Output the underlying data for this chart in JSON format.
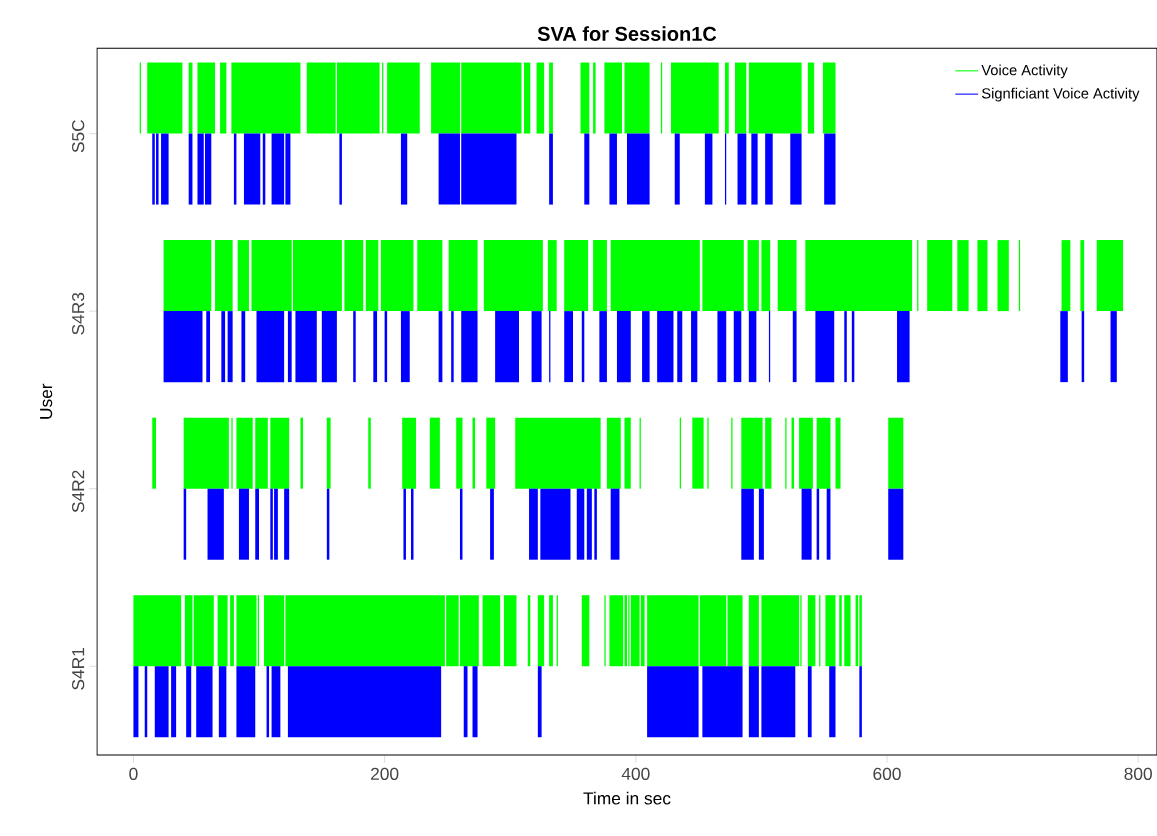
{
  "chart_data": {
    "type": "bar",
    "orientation": "horizontal",
    "title": "SVA for Session1C",
    "xlabel": "Time in sec",
    "ylabel": "User",
    "categories": [
      "S5C",
      "S4R3",
      "S4R2",
      "S4R1"
    ],
    "xlim": [
      -29,
      815
    ],
    "xticks": [
      0,
      200,
      400,
      600,
      800
    ],
    "legend": "top right",
    "series": [
      {
        "name": "Voice Activity",
        "color": "#00ff00",
        "base": [
          5,
          24,
          15,
          0
        ],
        "values": [
          1,
          38,
          3,
          38
        ]
      },
      {
        "color": "#00ff00",
        "base": [
          11,
          65,
          40,
          41
        ],
        "values": [
          28,
          14,
          36,
          6
        ]
      },
      {
        "color": "#00ff00",
        "base": [
          44,
          83,
          78,
          48
        ],
        "values": [
          3,
          9,
          1,
          16
        ]
      },
      {
        "color": "#00ff00",
        "base": [
          51,
          94,
          82,
          67
        ],
        "values": [
          14,
          32,
          13,
          8
        ]
      },
      {
        "color": "#00ff00",
        "base": [
          69,
          127,
          97,
          77
        ],
        "values": [
          5,
          39,
          10,
          3
        ]
      },
      {
        "color": "#00ff00",
        "base": [
          78,
          168,
          109,
          82
        ],
        "values": [
          55,
          15,
          15,
          16
        ]
      },
      {
        "color": "#00ff00",
        "base": [
          138,
          185,
          133,
          99
        ],
        "values": [
          23,
          10,
          2,
          1
        ]
      },
      {
        "color": "#00ff00",
        "base": [
          162,
          197,
          154,
          104
        ],
        "values": [
          34,
          26,
          3,
          16
        ]
      },
      {
        "color": "#00ff00",
        "base": [
          198,
          226,
          187,
          121
        ],
        "values": [
          1,
          20,
          2,
          127
        ]
      },
      {
        "color": "#00ff00",
        "base": [
          202,
          251,
          214,
          249
        ],
        "values": [
          26,
          23,
          11,
          10
        ]
      },
      {
        "color": "#00ff00",
        "base": [
          237,
          279,
          236,
          260
        ],
        "values": [
          23,
          47,
          8,
          15
        ]
      },
      {
        "color": "#00ff00",
        "base": [
          261,
          330,
          257,
          278
        ],
        "values": [
          48,
          7,
          5,
          14
        ]
      },
      {
        "color": "#00ff00",
        "base": [
          311,
          343,
          270,
          295
        ],
        "values": [
          5,
          19,
          2,
          10
        ]
      },
      {
        "color": "#00ff00",
        "base": [
          321,
          366,
          281,
          314
        ],
        "values": [
          6,
          11,
          7,
          2
        ]
      },
      {
        "color": "#00ff00",
        "base": [
          331,
          380,
          304,
          322
        ],
        "values": [
          3,
          71,
          68,
          5
        ]
      },
      {
        "color": "#00ff00",
        "base": [
          356,
          453,
          377,
          331
        ],
        "values": [
          7,
          33,
          11,
          3
        ]
      },
      {
        "color": "#00ff00",
        "base": [
          366,
          489,
          391,
          337
        ],
        "values": [
          2,
          9,
          5,
          1
        ]
      },
      {
        "color": "#00ff00",
        "base": [
          375,
          500,
          403,
          357
        ],
        "values": [
          14,
          7,
          1,
          6
        ]
      },
      {
        "color": "#00ff00",
        "base": [
          391,
          513,
          435,
          375
        ],
        "values": [
          20,
          15,
          1,
          1
        ]
      },
      {
        "color": "#00ff00",
        "base": [
          420,
          535,
          445,
          379
        ],
        "values": [
          1,
          85,
          9,
          11
        ]
      },
      {
        "color": "#00ff00",
        "base": [
          428,
          624,
          457,
          391
        ],
        "values": [
          38,
          1,
          1,
          2
        ]
      },
      {
        "color": "#00ff00",
        "base": [
          471,
          632,
          476,
          394
        ],
        "values": [
          3,
          20,
          1,
          1
        ]
      },
      {
        "color": "#00ff00",
        "base": [
          479,
          656,
          484,
          396
        ],
        "values": [
          9,
          9,
          17,
          7
        ]
      },
      {
        "color": "#00ff00",
        "base": [
          490,
          672,
          503,
          404
        ],
        "values": [
          42,
          8,
          5,
          3
        ]
      },
      {
        "color": "#00ff00",
        "base": [
          537,
          688,
          519,
          409
        ],
        "values": [
          5,
          9,
          1,
          41
        ]
      },
      {
        "color": "#00ff00",
        "base": [
          549,
          705,
          524,
          451
        ],
        "values": [
          10,
          1,
          2,
          21
        ]
      },
      {
        "color": "#00ff00",
        "base": [
          null,
          739,
          530,
          473
        ],
        "values": [
          null,
          7,
          11,
          12
        ]
      },
      {
        "color": "#00ff00",
        "base": [
          null,
          754,
          544,
          490
        ],
        "values": [
          null,
          3,
          11,
          8
        ]
      },
      {
        "color": "#00ff00",
        "base": [
          null,
          767,
          559,
          500
        ],
        "values": [
          null,
          21,
          4,
          30
        ]
      },
      {
        "color": "#00ff00",
        "base": [
          null,
          null,
          601,
          531
        ],
        "values": [
          null,
          null,
          12,
          1
        ]
      },
      {
        "color": "#00ff00",
        "base": [
          null,
          null,
          null,
          537
        ],
        "values": [
          null,
          null,
          null,
          6
        ]
      },
      {
        "color": "#00ff00",
        "base": [
          null,
          null,
          null,
          546
        ],
        "values": [
          null,
          null,
          null,
          1
        ]
      },
      {
        "color": "#00ff00",
        "base": [
          null,
          null,
          null,
          551
        ],
        "values": [
          null,
          null,
          null,
          8
        ]
      },
      {
        "color": "#00ff00",
        "base": [
          null,
          null,
          null,
          562
        ],
        "values": [
          null,
          null,
          null,
          2
        ]
      },
      {
        "color": "#00ff00",
        "base": [
          null,
          null,
          null,
          566
        ],
        "values": [
          null,
          null,
          null,
          5
        ]
      },
      {
        "color": "#00ff00",
        "base": [
          null,
          null,
          null,
          575
        ],
        "values": [
          null,
          null,
          null,
          2
        ]
      },
      {
        "color": "#00ff00",
        "base": [
          null,
          null,
          null,
          578
        ],
        "values": [
          null,
          null,
          null,
          2
        ]
      },
      {
        "name": "Signficiant Voice Activity",
        "color": "#0000ff",
        "base": [
          15,
          24,
          40,
          0
        ],
        "values": [
          2,
          31,
          2,
          4
        ]
      },
      {
        "color": "#0000ff",
        "base": [
          18,
          58,
          59,
          9
        ],
        "values": [
          2,
          3,
          13,
          2
        ]
      },
      {
        "color": "#0000ff",
        "base": [
          22,
          70,
          84,
          17
        ],
        "values": [
          6,
          3,
          8,
          11
        ]
      },
      {
        "color": "#0000ff",
        "base": [
          44,
          75,
          97,
          30
        ],
        "values": [
          3,
          4,
          3,
          4
        ]
      },
      {
        "color": "#0000ff",
        "base": [
          51,
          86,
          109,
          42
        ],
        "values": [
          5,
          3,
          2,
          4
        ]
      },
      {
        "color": "#0000ff",
        "base": [
          57,
          98,
          112,
          50
        ],
        "values": [
          5,
          22,
          3,
          13
        ]
      },
      {
        "color": "#0000ff",
        "base": [
          80,
          123,
          120,
          68
        ],
        "values": [
          2,
          3,
          4,
          6
        ]
      },
      {
        "color": "#0000ff",
        "base": [
          88,
          129,
          154,
          82
        ],
        "values": [
          13,
          17,
          2,
          15
        ]
      },
      {
        "color": "#0000ff",
        "base": [
          103,
          150,
          215,
          106
        ],
        "values": [
          2,
          12,
          2,
          2
        ]
      },
      {
        "color": "#0000ff",
        "base": [
          110,
          175,
          221,
          110
        ],
        "values": [
          10,
          2,
          2,
          7
        ]
      },
      {
        "color": "#0000ff",
        "base": [
          121,
          191,
          260,
          123
        ],
        "values": [
          4,
          3,
          2,
          122
        ]
      },
      {
        "color": "#0000ff",
        "base": [
          164,
          200,
          284,
          263
        ],
        "values": [
          2,
          2,
          3,
          3
        ]
      },
      {
        "color": "#0000ff",
        "base": [
          213,
          213,
          315,
          270
        ],
        "values": [
          5,
          7,
          7,
          4
        ]
      },
      {
        "color": "#0000ff",
        "base": [
          243,
          243,
          324,
          322
        ],
        "values": [
          17,
          3,
          24,
          3
        ]
      },
      {
        "color": "#0000ff",
        "base": [
          261,
          253,
          353,
          409
        ],
        "values": [
          44,
          2,
          6,
          41
        ]
      },
      {
        "color": "#0000ff",
        "base": [
          331,
          261,
          361,
          453
        ],
        "values": [
          3,
          13,
          4,
          32
        ]
      },
      {
        "color": "#0000ff",
        "base": [
          359,
          288,
          367,
          490
        ],
        "values": [
          4,
          19,
          2,
          8
        ]
      },
      {
        "color": "#0000ff",
        "base": [
          379,
          317,
          380,
          500
        ],
        "values": [
          6,
          8,
          7,
          27
        ]
      },
      {
        "color": "#0000ff",
        "base": [
          393,
          331,
          484,
          537
        ],
        "values": [
          18,
          1,
          10,
          3
        ]
      },
      {
        "color": "#0000ff",
        "base": [
          431,
          343,
          498,
          554
        ],
        "values": [
          4,
          7,
          4,
          5
        ]
      },
      {
        "color": "#0000ff",
        "base": [
          455,
          357,
          532,
          578
        ],
        "values": [
          6,
          2,
          8,
          2
        ]
      },
      {
        "color": "#0000ff",
        "base": [
          471,
          371,
          544,
          null
        ],
        "values": [
          1,
          6,
          2,
          null
        ]
      },
      {
        "color": "#0000ff",
        "base": [
          481,
          385,
          552,
          null
        ],
        "values": [
          7,
          11,
          3,
          null
        ]
      },
      {
        "color": "#0000ff",
        "base": [
          492,
          405,
          601,
          null
        ],
        "values": [
          5,
          6,
          12,
          null
        ]
      },
      {
        "color": "#0000ff",
        "base": [
          503,
          417,
          null,
          null
        ],
        "values": [
          6,
          13,
          null,
          null
        ]
      },
      {
        "color": "#0000ff",
        "base": [
          523,
          433,
          null,
          null
        ],
        "values": [
          9,
          4,
          null,
          null
        ]
      },
      {
        "color": "#0000ff",
        "base": [
          550,
          444,
          null,
          null
        ],
        "values": [
          9,
          5,
          null,
          null
        ]
      },
      {
        "color": "#0000ff",
        "base": [
          null,
          465,
          null,
          null
        ],
        "values": [
          null,
          7,
          null,
          null
        ]
      },
      {
        "color": "#0000ff",
        "base": [
          null,
          478,
          null,
          null
        ],
        "values": [
          null,
          6,
          null,
          null
        ]
      },
      {
        "color": "#0000ff",
        "base": [
          null,
          490,
          null,
          null
        ],
        "values": [
          null,
          6,
          null,
          null
        ]
      },
      {
        "color": "#0000ff",
        "base": [
          null,
          506,
          null,
          null
        ],
        "values": [
          null,
          1,
          null,
          null
        ]
      },
      {
        "color": "#0000ff",
        "base": [
          null,
          525,
          null,
          null
        ],
        "values": [
          null,
          3,
          null,
          null
        ]
      },
      {
        "color": "#0000ff",
        "base": [
          null,
          543,
          null,
          null
        ],
        "values": [
          null,
          15,
          null,
          null
        ]
      },
      {
        "color": "#0000ff",
        "base": [
          null,
          566,
          null,
          null
        ],
        "values": [
          null,
          2,
          null,
          null
        ]
      },
      {
        "color": "#0000ff",
        "base": [
          null,
          572,
          null,
          null
        ],
        "values": [
          null,
          2,
          null,
          null
        ]
      },
      {
        "color": "#0000ff",
        "base": [
          null,
          608,
          null,
          null
        ],
        "values": [
          null,
          10,
          null,
          null
        ]
      },
      {
        "color": "#0000ff",
        "base": [
          null,
          738,
          null,
          null
        ],
        "values": [
          null,
          6,
          null,
          null
        ]
      },
      {
        "color": "#0000ff",
        "base": [
          null,
          755,
          null,
          null
        ],
        "values": [
          null,
          2,
          null,
          null
        ]
      },
      {
        "color": "#0000ff",
        "base": [
          null,
          778,
          null,
          null
        ],
        "values": [
          null,
          5,
          null,
          null
        ]
      }
    ]
  }
}
